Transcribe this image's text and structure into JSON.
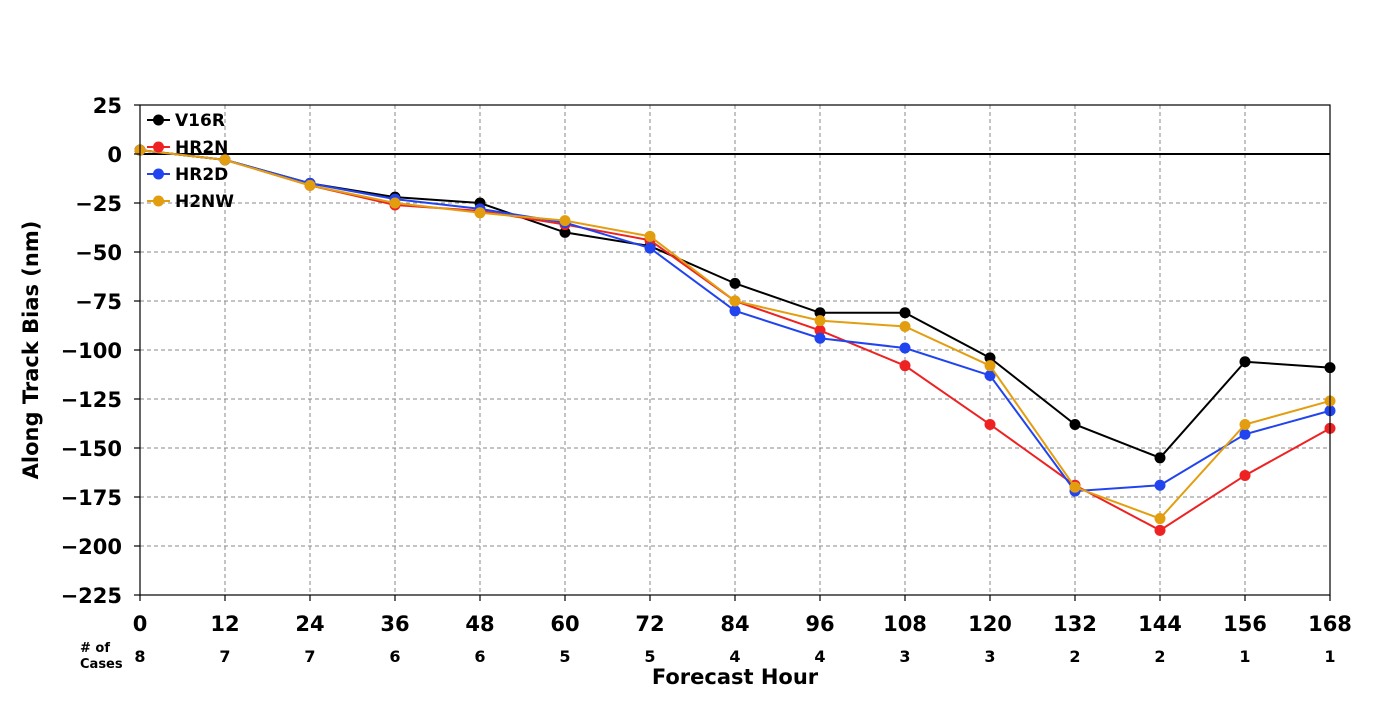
{
  "chart_data": {
    "type": "line",
    "title": "",
    "xlabel": "Forecast Hour",
    "ylabel": "Along Track Bias (nm)",
    "x": [
      0,
      12,
      24,
      36,
      48,
      60,
      72,
      84,
      96,
      108,
      120,
      132,
      144,
      156,
      168
    ],
    "xlim": [
      0,
      168
    ],
    "ylim": [
      -225,
      25
    ],
    "yticks": [
      25,
      0,
      -25,
      -50,
      -75,
      -100,
      -125,
      -150,
      -175,
      -200,
      -225
    ],
    "grid": true,
    "grid_style": "dashed",
    "zero_line": true,
    "legend_position": "top-left",
    "cases_label": "# of\nCases",
    "cases": [
      8,
      7,
      7,
      6,
      6,
      5,
      5,
      4,
      4,
      3,
      3,
      2,
      2,
      1,
      1
    ],
    "series": [
      {
        "name": "V16R",
        "color": "#000000",
        "values": [
          2,
          -3,
          -15,
          -22,
          -25,
          -40,
          -47,
          -66,
          -81,
          -81,
          -104,
          -138,
          -155,
          -106,
          -109
        ]
      },
      {
        "name": "HR2N",
        "color": "#ee2222",
        "values": [
          2,
          -3,
          -16,
          -26,
          -29,
          -36,
          -44,
          -75,
          -90,
          -108,
          -138,
          -169,
          -192,
          -164,
          -140
        ]
      },
      {
        "name": "HR2D",
        "color": "#2244ee",
        "values": [
          2,
          -3,
          -15,
          -23,
          -28,
          -35,
          -48,
          -80,
          -94,
          -99,
          -113,
          -172,
          -169,
          -143,
          -131
        ]
      },
      {
        "name": "H2NW",
        "color": "#e39e10",
        "values": [
          2,
          -3,
          -16,
          -25,
          -30,
          -34,
          -42,
          -75,
          -85,
          -88,
          -108,
          -170,
          -186,
          -138,
          -126
        ]
      }
    ]
  }
}
